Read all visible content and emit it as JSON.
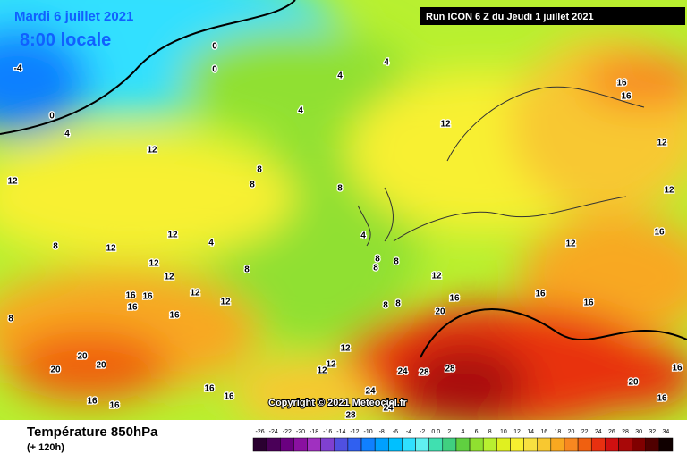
{
  "header": {
    "date": "Mardi 6 juillet 2021",
    "time": "8:00 locale",
    "run": "Run ICON 6 Z du Jeudi 1 juillet 2021"
  },
  "copyright": "Copyright © 2021 Meteociel.fr",
  "footer": {
    "title": "Température 850hPa",
    "lead": "(+ 120h)"
  },
  "contour_labels": [
    -4,
    0,
    4,
    0,
    0,
    4,
    4,
    4,
    12,
    12,
    8,
    8,
    8,
    12,
    16,
    16,
    12,
    12,
    16,
    12,
    12,
    12,
    8,
    4,
    4,
    8,
    12,
    12,
    12,
    12,
    16,
    16,
    16,
    16,
    8,
    8,
    8,
    8,
    12,
    16,
    16,
    16,
    20,
    8,
    8,
    12,
    12,
    12,
    24,
    28,
    28,
    24,
    24,
    28,
    20,
    20,
    20,
    16,
    16,
    16,
    16,
    20,
    16,
    16
  ],
  "scale": {
    "ticks": [
      -26,
      -24,
      -22,
      -20,
      -18,
      -16,
      -14,
      -12,
      -10,
      -8,
      -6,
      -4,
      -2,
      {
        "value": 0,
        "label": "0.0"
      },
      2,
      4,
      6,
      8,
      10,
      12,
      14,
      16,
      18,
      20,
      22,
      24,
      26,
      28,
      30,
      32,
      34
    ],
    "colors": [
      "#2a0030",
      "#4a0058",
      "#6a0080",
      "#8a10a0",
      "#a030c0",
      "#8040d0",
      "#5050e0",
      "#3060f0",
      "#1080ff",
      "#00a0ff",
      "#00c0ff",
      "#30e0ff",
      "#60f0f0",
      "#40e0b0",
      "#40d080",
      "#60d040",
      "#90e030",
      "#b8f030",
      "#e0f020",
      "#f8f030",
      "#f8e040",
      "#f8c830",
      "#f8a820",
      "#f88820",
      "#f06010",
      "#e83010",
      "#d01010",
      "#a80808",
      "#800000",
      "#500000",
      "#100000"
    ]
  }
}
